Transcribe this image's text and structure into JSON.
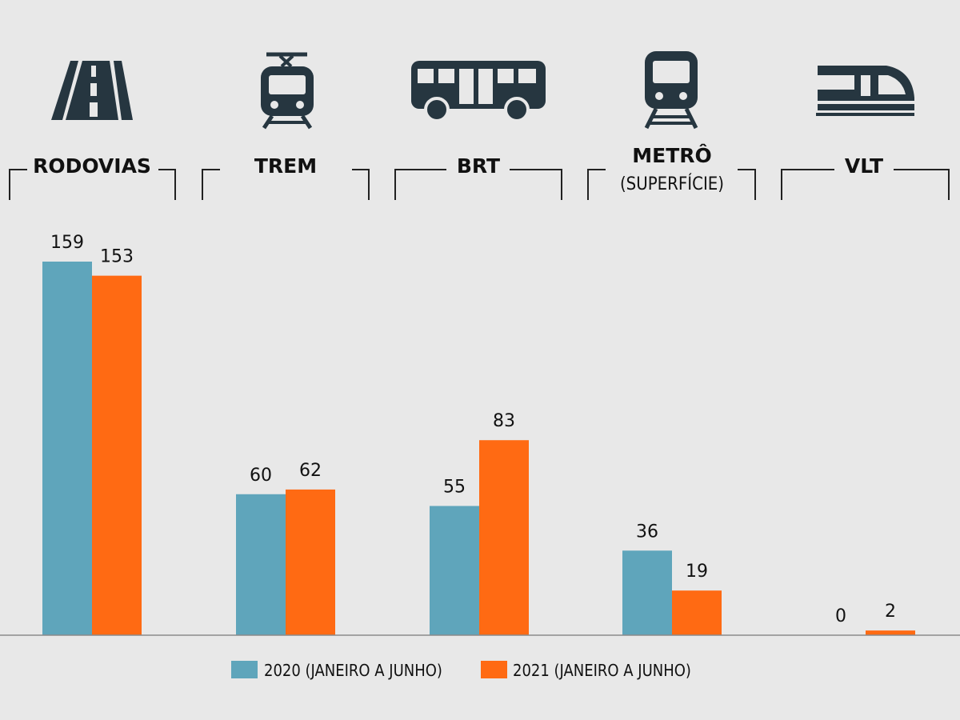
{
  "chart_data": {
    "type": "bar",
    "categories": [
      "RODOVIAS",
      "TREM",
      "BRT",
      "METRÔ",
      "VLT"
    ],
    "category_subtitles": [
      "",
      "",
      "",
      "(SUPERFÍCIE)",
      ""
    ],
    "category_icons": [
      "road-icon",
      "tram-icon",
      "bus-icon",
      "subway-train-icon",
      "light-rail-icon"
    ],
    "series": [
      {
        "name": "2020 (JANEIRO A JUNHO)",
        "color": "#5fa5bb",
        "values": [
          159,
          60,
          55,
          36,
          0
        ]
      },
      {
        "name": "2021 (JANEIRO A JUNHO)",
        "color": "#ff6a13",
        "values": [
          153,
          62,
          83,
          19,
          2
        ]
      }
    ],
    "ylim": [
      0,
      159
    ],
    "grid": false,
    "legend_position": "bottom-center",
    "icon_color": "#263640"
  }
}
